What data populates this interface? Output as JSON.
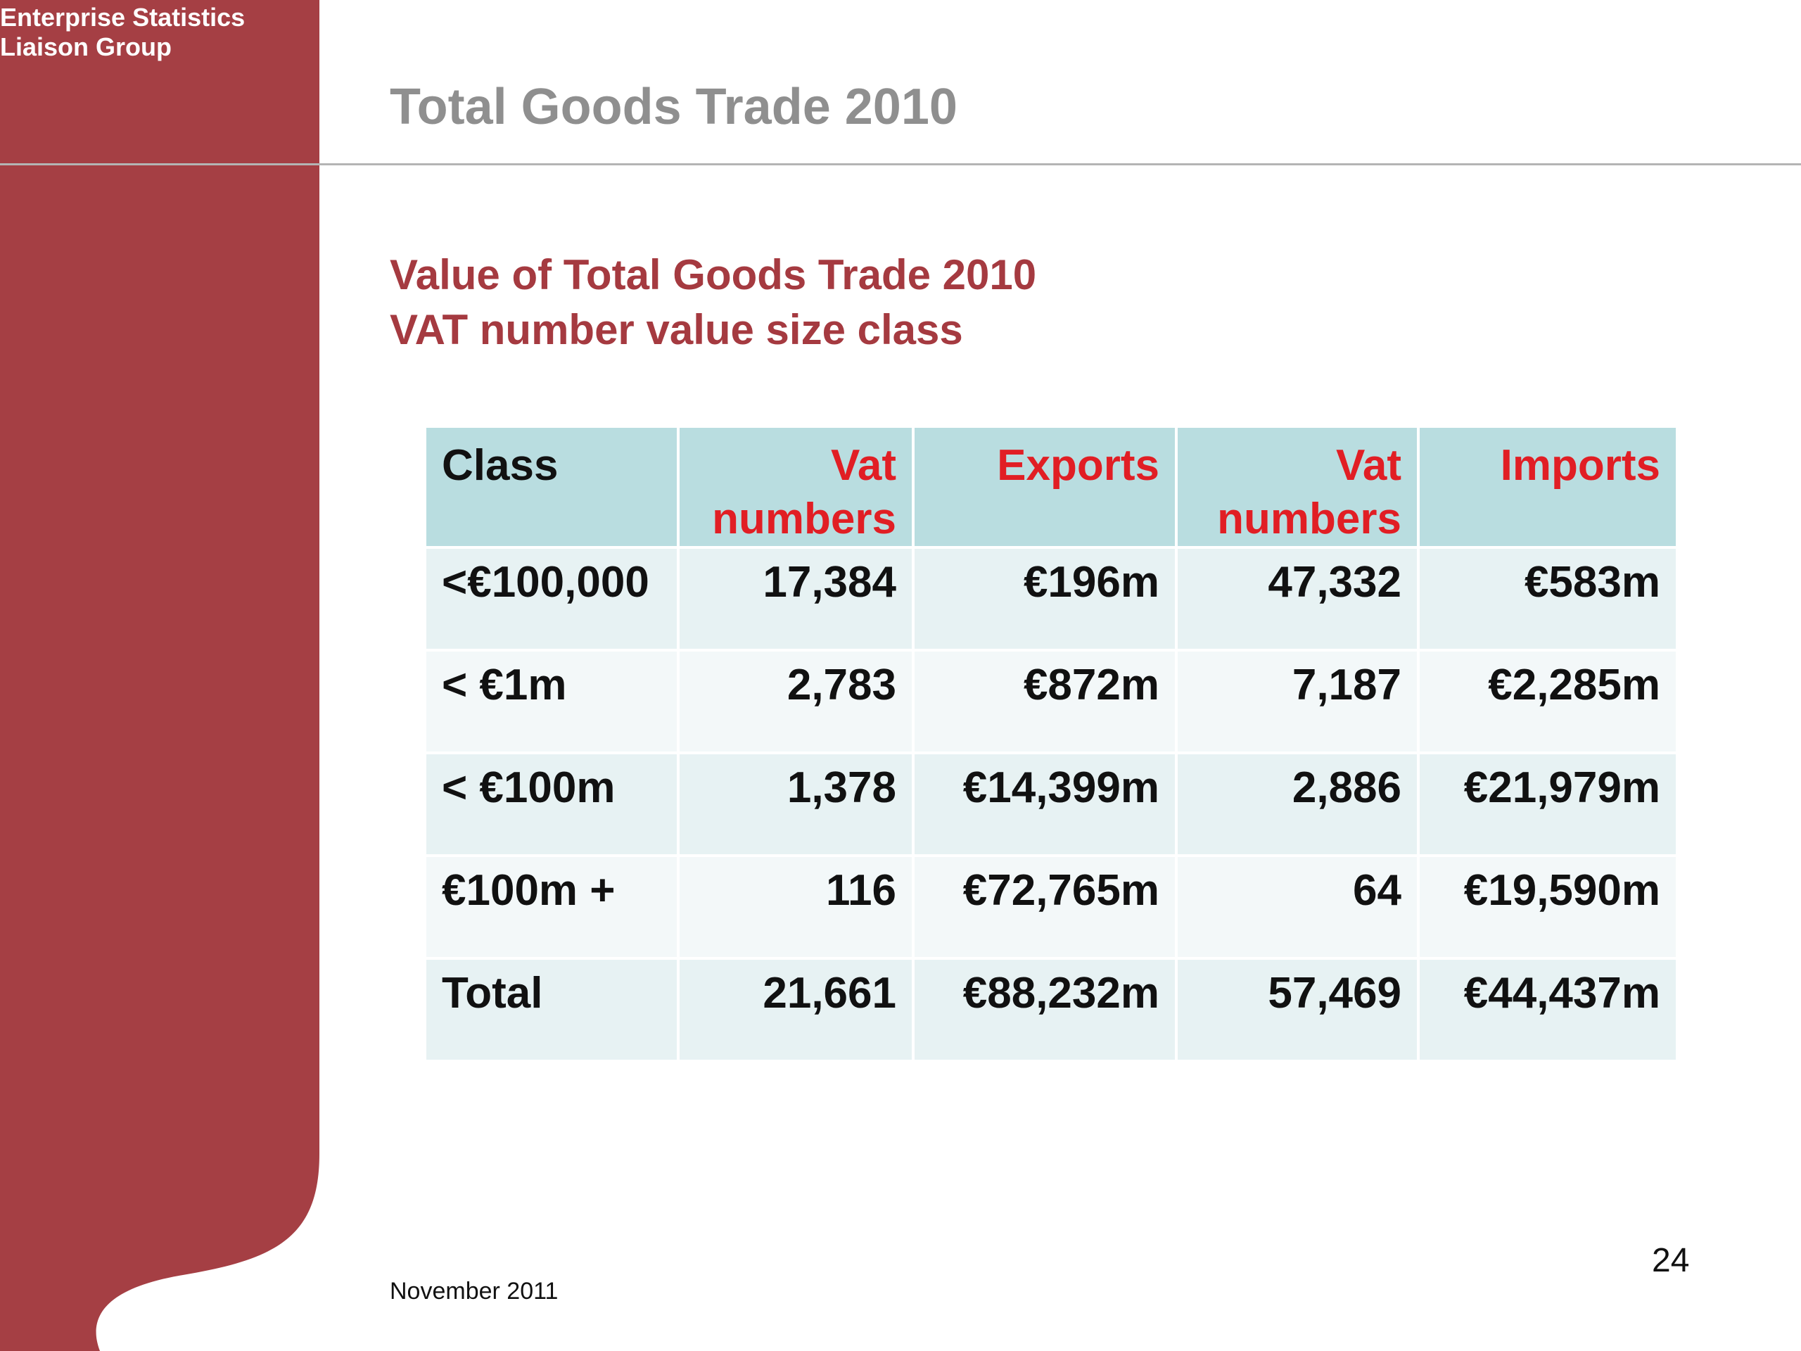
{
  "organization": {
    "line1": "Enterprise Statistics",
    "line2": "Liaison Group"
  },
  "slide_title": "Total Goods Trade 2010",
  "subtitle": {
    "line1": "Value of Total Goods Trade 2010",
    "line2": "VAT number value size class"
  },
  "table": {
    "headers": {
      "class": "Class",
      "export_vat_line1": "Vat",
      "export_vat_line2": "numbers",
      "exports": "Exports",
      "import_vat_line1": "Vat",
      "import_vat_line2": "numbers",
      "imports": "Imports"
    },
    "rows": [
      {
        "class": "<€100,000",
        "export_vat": "17,384",
        "exports": "€196m",
        "import_vat": "47,332",
        "imports": "€583m"
      },
      {
        "class": "< €1m",
        "export_vat": "2,783",
        "exports": "€872m",
        "import_vat": "7,187",
        "imports": "€2,285m"
      },
      {
        "class": "< €100m",
        "export_vat": "1,378",
        "exports": "€14,399m",
        "import_vat": "2,886",
        "imports": "€21,979m"
      },
      {
        "class": "€100m +",
        "export_vat": "116",
        "exports": "€72,765m",
        "import_vat": "64",
        "imports": "€19,590m"
      },
      {
        "class": "Total",
        "export_vat": "21,661",
        "exports": "€88,232m",
        "import_vat": "57,469",
        "imports": "€44,437m"
      }
    ]
  },
  "footer": {
    "date": "November 2011",
    "page_number": "24"
  },
  "colors": {
    "sidebar": "#a53f44",
    "title": "#8f8f8f",
    "subtitle": "#a53a40",
    "header_accent": "#e11e24",
    "table_header_bg": "#b9dde0",
    "row_odd_bg": "#e7f2f3",
    "row_even_bg": "#f3f8f9"
  }
}
